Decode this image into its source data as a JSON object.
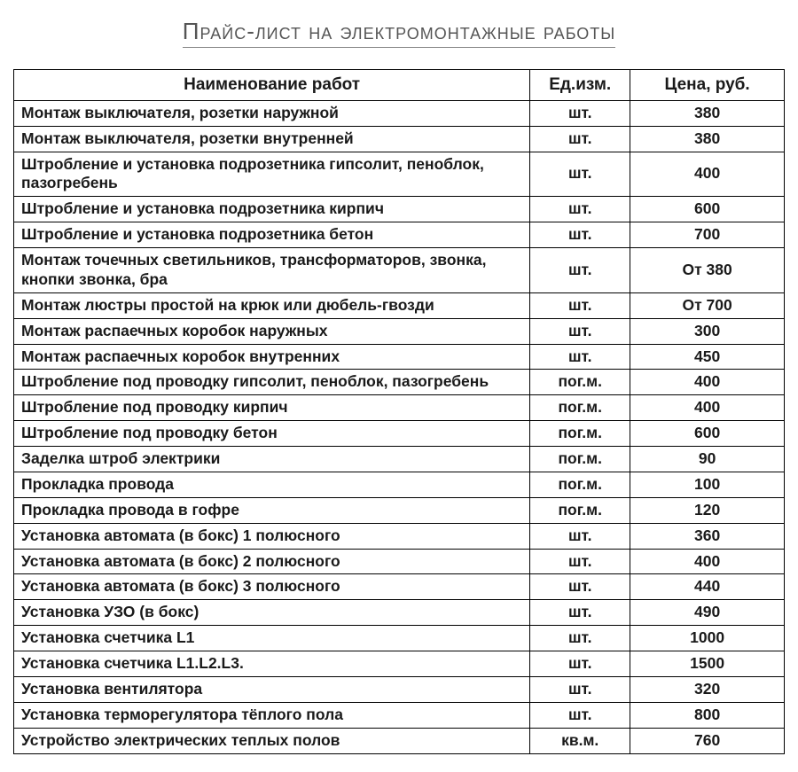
{
  "title": "Прайс-лист на электромонтажные работы",
  "title_color": "#555555",
  "title_underline_color": "#888888",
  "title_fontsize": 26,
  "table": {
    "border_color": "#000000",
    "border_width": 1.5,
    "cell_fontsize": 17.5,
    "header_fontsize": 19,
    "column_widths_pct": [
      67,
      13,
      20
    ],
    "columns": [
      "Наименование работ",
      "Ед.изм.",
      "Цена, руб."
    ],
    "text_align": [
      "left",
      "center",
      "center"
    ],
    "rows": [
      [
        "Монтаж выключателя, розетки наружной",
        "шт.",
        "380"
      ],
      [
        "Монтаж выключателя, розетки внутренней",
        "шт.",
        "380"
      ],
      [
        "Штробление и установка подрозетника гипсолит, пеноблок, пазогребень",
        "шт.",
        "400"
      ],
      [
        "Штробление и установка подрозетника кирпич",
        "шт.",
        "600"
      ],
      [
        "Штробление и установка подрозетника бетон",
        "шт.",
        "700"
      ],
      [
        "Монтаж точечных светильников, трансформаторов, звонка, кнопки звонка, бра",
        "шт.",
        "От 380"
      ],
      [
        "Монтаж люстры простой на крюк или дюбель-гвозди",
        "шт.",
        "От 700"
      ],
      [
        "Монтаж распаечных коробок наружных",
        "шт.",
        "300"
      ],
      [
        "Монтаж распаечных коробок внутренних",
        "шт.",
        "450"
      ],
      [
        "Штробление под проводку гипсолит, пеноблок, пазогребень",
        "пог.м.",
        "400"
      ],
      [
        "Штробление под проводку кирпич",
        "пог.м.",
        "400"
      ],
      [
        "Штробление под проводку бетон",
        "пог.м.",
        "600"
      ],
      [
        "Заделка штроб электрики",
        "пог.м.",
        "90"
      ],
      [
        "Прокладка провода",
        "пог.м.",
        "100"
      ],
      [
        "Прокладка провода в гофре",
        "пог.м.",
        "120"
      ],
      [
        "Установка автомата (в бокс) 1 полюсного",
        "шт.",
        "360"
      ],
      [
        "Установка автомата (в бокс) 2 полюсного",
        "шт.",
        "400"
      ],
      [
        "Установка автомата (в бокс) 3 полюсного",
        "шт.",
        "440"
      ],
      [
        "Установка УЗО (в бокс)",
        "шт.",
        "490"
      ],
      [
        "Установка счетчика L1",
        "шт.",
        "1000"
      ],
      [
        "Установка счетчика L1.L2.L3.",
        "шт.",
        "1500"
      ],
      [
        "Установка вентилятора",
        "шт.",
        "320"
      ],
      [
        "Установка терморегулятора тёплого пола",
        "шт.",
        "800"
      ],
      [
        "Устройство электрических теплых полов",
        "кв.м.",
        "760"
      ]
    ]
  }
}
